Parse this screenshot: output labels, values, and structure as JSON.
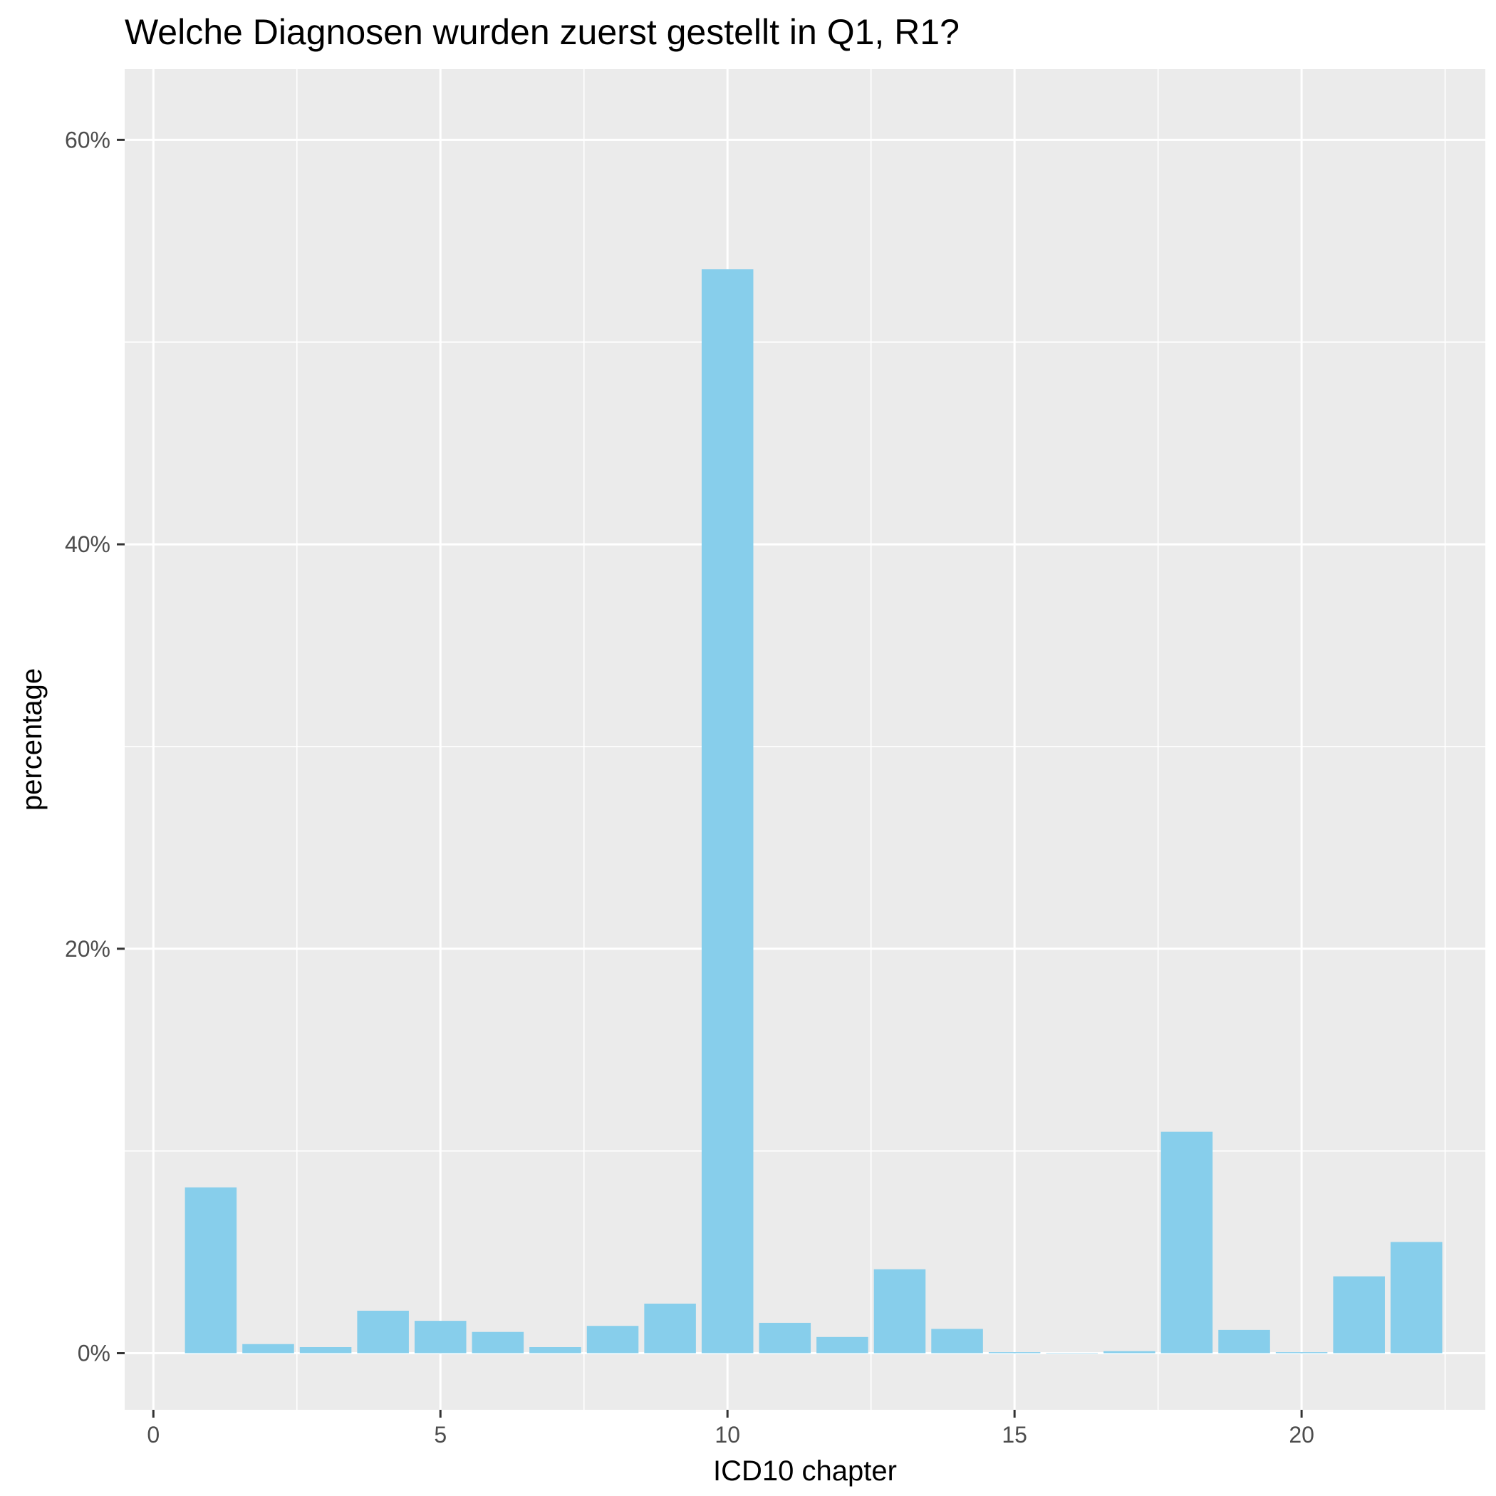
{
  "chart_data": {
    "type": "bar",
    "title": "Welche Diagnosen wurden zuerst gestellt in Q1, R1?",
    "xlabel": "ICD10 chapter",
    "ylabel": "percentage",
    "x_ticks": [
      "0",
      "5",
      "10",
      "15",
      "20"
    ],
    "x_tick_values": [
      0,
      5,
      10,
      15,
      20
    ],
    "y_ticks": [
      "0%",
      "20%",
      "40%",
      "60%"
    ],
    "y_tick_values": [
      0,
      20,
      40,
      60
    ],
    "xlim": [
      -0.5,
      23.2
    ],
    "ylim": [
      -2.8,
      63.5
    ],
    "bar_width": 0.9,
    "grid": true,
    "colors": {
      "bar": "#87CEEB",
      "panel": "#EBEBEB",
      "grid": "#FFFFFF"
    },
    "x": [
      1,
      2,
      3,
      4,
      5,
      6,
      7,
      8,
      9,
      10,
      11,
      12,
      13,
      14,
      15,
      16,
      17,
      18,
      19,
      20,
      21,
      22
    ],
    "values": [
      8.2,
      0.45,
      0.3,
      2.1,
      1.6,
      1.05,
      0.3,
      1.35,
      2.45,
      53.6,
      1.5,
      0.8,
      4.15,
      1.2,
      0.05,
      0.0,
      0.1,
      10.95,
      1.15,
      0.05,
      3.8,
      5.5
    ]
  }
}
